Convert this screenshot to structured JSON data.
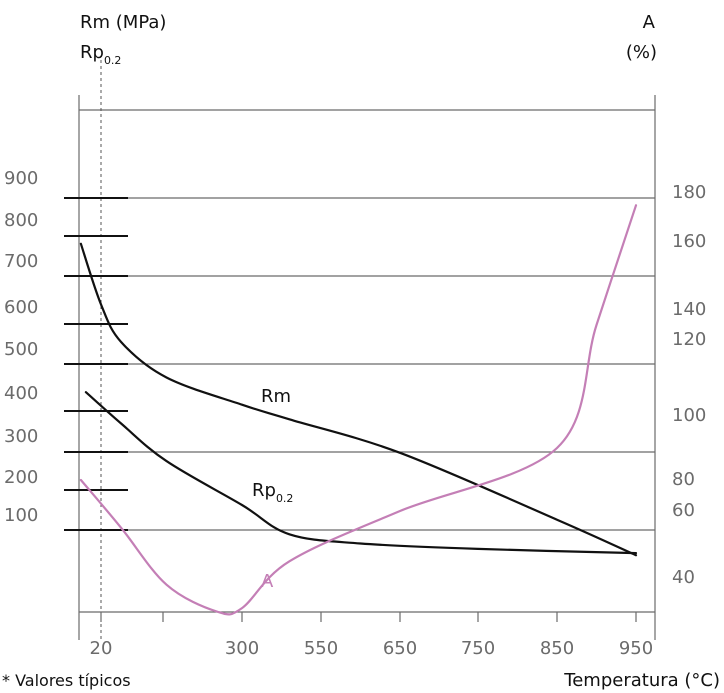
{
  "chart_data": {
    "type": "line",
    "axis_titles": {
      "left_line1": "Rm (MPa)",
      "left_line2_base": "Rp",
      "left_line2_sub": "0.2",
      "right_line1": "A",
      "right_line2": "(%)",
      "x_title": "Temperatura (°C)"
    },
    "footnote": "* Valores típicos",
    "x_ticks": [
      "20",
      "300",
      "550",
      "650",
      "750",
      "850",
      "950"
    ],
    "left_ticks": [
      "900",
      "800",
      "700",
      "600",
      "500",
      "400",
      "300",
      "200",
      "100"
    ],
    "right_ticks": [
      "180",
      "160",
      "140",
      "120",
      "100",
      "80",
      "60",
      "40"
    ],
    "series": [
      {
        "name_base": "Rm",
        "name_sub": "",
        "color": "#111111",
        "points": [
          [
            -20,
            790
          ],
          [
            20,
            645
          ],
          [
            60,
            555
          ],
          [
            150,
            470
          ],
          [
            300,
            405
          ],
          [
            450,
            370
          ],
          [
            650,
            290
          ],
          [
            850,
            130
          ],
          [
            950,
            45
          ]
        ]
      },
      {
        "name_base": "Rp",
        "name_sub": "0.2",
        "color": "#111111",
        "points": [
          [
            -10,
            435
          ],
          [
            60,
            360
          ],
          [
            150,
            270
          ],
          [
            300,
            165
          ],
          [
            450,
            95
          ],
          [
            600,
            73
          ],
          [
            750,
            60
          ],
          [
            950,
            50
          ]
        ]
      },
      {
        "name_base": "A",
        "name_sub": "",
        "color": "#c47fb6",
        "points": [
          [
            -20,
            80
          ],
          [
            60,
            55
          ],
          [
            150,
            38
          ],
          [
            250,
            30
          ],
          [
            300,
            31
          ],
          [
            450,
            45
          ],
          [
            650,
            60
          ],
          [
            850,
            90
          ],
          [
            900,
            130
          ],
          [
            950,
            175
          ]
        ]
      }
    ]
  }
}
